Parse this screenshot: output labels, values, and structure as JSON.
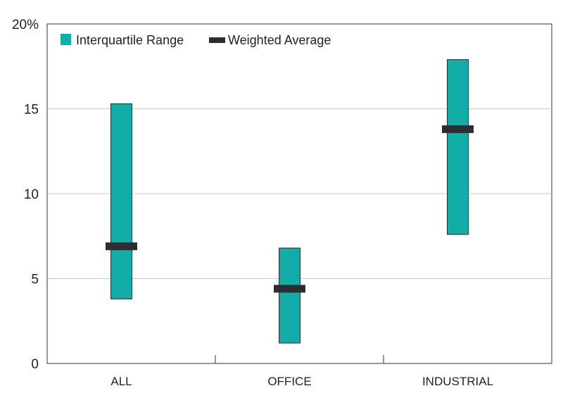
{
  "chart_data": {
    "type": "floating-bar",
    "categories": [
      "ALL",
      "OFFICE",
      "INDUSTRIAL"
    ],
    "series": [
      {
        "name": "Interquartile Range",
        "ranges": [
          [
            3.8,
            15.3
          ],
          [
            1.2,
            6.8
          ],
          [
            7.6,
            17.9
          ]
        ]
      },
      {
        "name": "Weighted Average",
        "values": [
          6.9,
          4.4,
          13.8
        ]
      }
    ],
    "y_ticks": [
      "0",
      "5",
      "10",
      "15",
      "20%"
    ],
    "ylim": [
      0,
      20
    ],
    "grid": true,
    "legend_position": "top-left",
    "xlabel": "",
    "ylabel": "",
    "colors": {
      "range": "#12ada9",
      "range_stroke": "#2b2b2b",
      "average": "#2b2f33",
      "grid": "#c8c8c8",
      "axis": "#333333"
    }
  }
}
